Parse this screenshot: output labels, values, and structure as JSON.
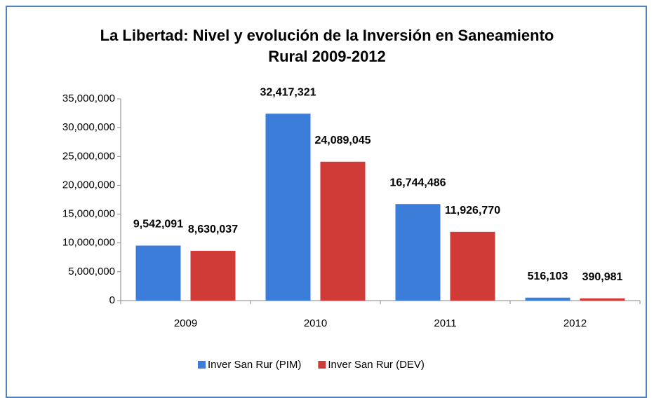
{
  "chart_data": {
    "type": "bar",
    "title": "La Libertad: Nivel y evolución de la Inversión en Saneamiento Rural 2009-2012",
    "categories": [
      "2009",
      "2010",
      "2011",
      "2012"
    ],
    "series": [
      {
        "name": "Inver San Rur (PIM)",
        "color": "#3b7dd8",
        "values": [
          9542091,
          32417321,
          16744486,
          516103
        ],
        "value_labels": [
          "9,542,091",
          "32,417,321",
          "16,744,486",
          "516,103"
        ]
      },
      {
        "name": "Inver San Rur (DEV)",
        "color": "#d03b38",
        "values": [
          8630037,
          24089045,
          11926770,
          390981
        ],
        "value_labels": [
          "8,630,037",
          "24,089,045",
          "11,926,770",
          "390,981"
        ]
      }
    ],
    "ylim": [
      0,
      35000000
    ],
    "yticks": [
      0,
      {
        "value": 5000000,
        "label": "5,000,000"
      },
      {
        "value": 10000000,
        "label": "10,000,000"
      },
      {
        "value": 15000000,
        "label": "15,000,000"
      },
      {
        "value": 20000000,
        "label": "20,000,000"
      },
      {
        "value": 25000000,
        "label": "25,000,000"
      },
      {
        "value": 30000000,
        "label": "30,000,000"
      },
      {
        "value": 35000000,
        "label": "35,000,000"
      }
    ],
    "grid": false,
    "legend": "bottom"
  }
}
